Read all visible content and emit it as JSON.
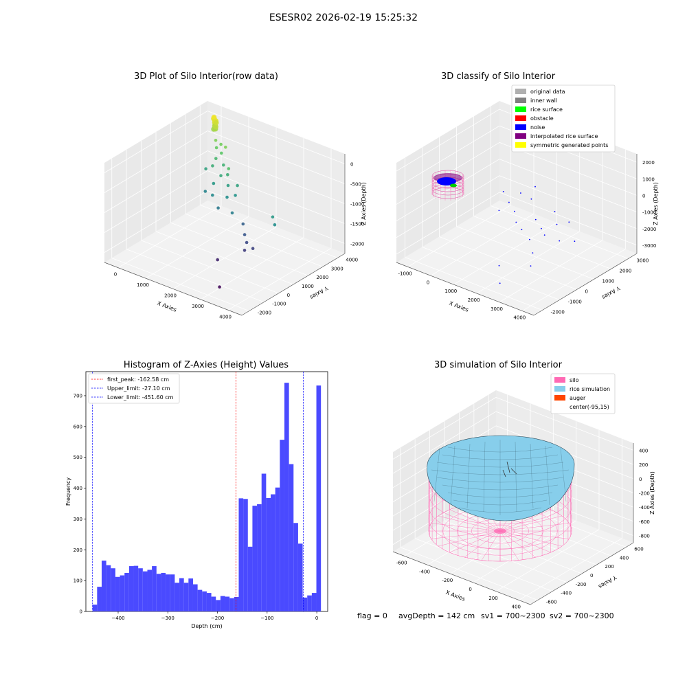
{
  "figure": {
    "suptitle": "ESESR02 2026-02-19 15:25:32",
    "status": {
      "flag": "flag = 0",
      "avg_depth": "avgDepth = 142 cm",
      "sv1": "sv1 = 700~2300",
      "sv2": "sv2 = 700~2300"
    }
  },
  "chart_data": [
    {
      "type": "scatter",
      "title": "3D Plot of Silo Interior(row data)",
      "xlabel": "X Axies",
      "ylabel": "Y Axies",
      "zlabel": "Z Axies (Depth)",
      "x_ticks": [
        "0",
        "1000",
        "2000",
        "3000",
        "4000"
      ],
      "y_ticks": [
        "-2000",
        "-1000",
        "0",
        "1000",
        "2000",
        "3000",
        "4000"
      ],
      "z_ticks": [
        "0",
        "-500",
        "-1000",
        "-1500",
        "-2000"
      ],
      "xlim": [
        -700,
        4600
      ],
      "ylim": [
        -2300,
        4300
      ],
      "zlim": [
        -2400,
        100
      ],
      "colormap": "viridis",
      "points": [
        {
          "x": -200,
          "y": 3900,
          "z": -120
        },
        {
          "x": -150,
          "y": 3850,
          "z": -200
        },
        {
          "x": -250,
          "y": 3950,
          "z": -150
        },
        {
          "x": -100,
          "y": 3800,
          "z": -250
        },
        {
          "x": -180,
          "y": 3900,
          "z": -300
        },
        {
          "x": -120,
          "y": 3850,
          "z": -350
        },
        {
          "x": -220,
          "y": 3920,
          "z": -100
        },
        {
          "x": -160,
          "y": 3880,
          "z": -180
        },
        {
          "x": -90,
          "y": 3820,
          "z": -280
        },
        {
          "x": -200,
          "y": 3870,
          "z": -380
        },
        {
          "x": -140,
          "y": 3930,
          "z": -220
        },
        {
          "x": -110,
          "y": 3860,
          "z": -150
        },
        {
          "x": 100,
          "y": 3500,
          "z": -500
        },
        {
          "x": 250,
          "y": 3300,
          "z": -600
        },
        {
          "x": 300,
          "y": 3500,
          "z": -550
        },
        {
          "x": 500,
          "y": 3200,
          "z": -650
        },
        {
          "x": 350,
          "y": 3100,
          "z": -800
        },
        {
          "x": 600,
          "y": 3300,
          "z": -500
        },
        {
          "x": 400,
          "y": 2800,
          "z": -900
        },
        {
          "x": 700,
          "y": 3000,
          "z": -850
        },
        {
          "x": 200,
          "y": 2700,
          "z": -1000
        },
        {
          "x": 900,
          "y": 2500,
          "z": -950
        },
        {
          "x": 1100,
          "y": 2600,
          "z": -900
        },
        {
          "x": 800,
          "y": 2200,
          "z": -1100
        },
        {
          "x": 1300,
          "y": 2300,
          "z": -1050
        },
        {
          "x": 600,
          "y": 2000,
          "z": -1300
        },
        {
          "x": 1000,
          "y": 1800,
          "z": -1250
        },
        {
          "x": 1500,
          "y": 1900,
          "z": -1200
        },
        {
          "x": 1700,
          "y": 2100,
          "z": -1150
        },
        {
          "x": 1400,
          "y": 1500,
          "z": -1400
        },
        {
          "x": 2000,
          "y": 1400,
          "z": -1350
        },
        {
          "x": 2300,
          "y": 1600,
          "z": -1600
        },
        {
          "x": 2600,
          "y": 1200,
          "z": -1700
        },
        {
          "x": 2800,
          "y": 1000,
          "z": -1800
        },
        {
          "x": 3100,
          "y": 900,
          "z": -1850
        },
        {
          "x": 2900,
          "y": 700,
          "z": -1900
        },
        {
          "x": 3500,
          "y": 1500,
          "z": -1100
        },
        {
          "x": 3700,
          "y": 1300,
          "z": -1200
        },
        {
          "x": 2400,
          "y": -200,
          "z": -2050
        },
        {
          "x": 3200,
          "y": -1400,
          "z": -2250
        },
        {
          "x": 1200,
          "y": 2500,
          "z": -700
        },
        {
          "x": 1600,
          "y": 2400,
          "z": -1000
        }
      ]
    },
    {
      "type": "scatter",
      "title": "3D classify of Silo Interior",
      "xlabel": "X Axies",
      "ylabel": "Y Axies",
      "zlabel": "Z Axies (Depth)",
      "x_ticks": [
        "-1000",
        "0",
        "1000",
        "2000",
        "3000",
        "4000"
      ],
      "y_ticks": [
        "-2000",
        "-1000",
        "0",
        "1000",
        "2000",
        "3000"
      ],
      "z_ticks": [
        "2000",
        "1000",
        "0",
        "-1000",
        "-2000",
        "-3000"
      ],
      "xlim": [
        -1300,
        4700
      ],
      "ylim": [
        -2300,
        3500
      ],
      "zlim": [
        -3600,
        2300
      ],
      "legend_position": "upper right",
      "legend": [
        {
          "label": "original data",
          "color": "#b0b0b0"
        },
        {
          "label": "inner wall",
          "color": "#808080"
        },
        {
          "label": "rice surface",
          "color": "#00ff00"
        },
        {
          "label": "obstacle",
          "color": "#ff0000"
        },
        {
          "label": "noise",
          "color": "#0000ff"
        },
        {
          "label": "interpolated rice surface",
          "color": "#800080"
        },
        {
          "label": "symmetric generated points",
          "color": "#ffff00"
        }
      ],
      "noise_points": [
        {
          "x": 500,
          "y": 1400,
          "z": -800
        },
        {
          "x": 900,
          "y": 1200,
          "z": -1100
        },
        {
          "x": 1300,
          "y": 1000,
          "z": -1300
        },
        {
          "x": 700,
          "y": 900,
          "z": -1500
        },
        {
          "x": 1600,
          "y": 700,
          "z": -1600
        },
        {
          "x": 2000,
          "y": 500,
          "z": -1700
        },
        {
          "x": 2300,
          "y": 900,
          "z": -1200
        },
        {
          "x": 2700,
          "y": 700,
          "z": -1400
        },
        {
          "x": 3000,
          "y": 500,
          "z": -1500
        },
        {
          "x": 3300,
          "y": 800,
          "z": -900
        },
        {
          "x": 3600,
          "y": 1100,
          "z": -800
        },
        {
          "x": 2500,
          "y": 300,
          "z": -1900
        },
        {
          "x": 3100,
          "y": -300,
          "z": -2000
        },
        {
          "x": 3800,
          "y": 300,
          "z": -1300
        },
        {
          "x": 1100,
          "y": 1600,
          "z": -700
        },
        {
          "x": 1800,
          "y": 1300,
          "z": -500
        },
        {
          "x": 2100,
          "y": -900,
          "z": -2900
        },
        {
          "x": 2600,
          "y": -1500,
          "z": -3300
        },
        {
          "x": 1500,
          "y": 1900,
          "z": -300
        },
        {
          "x": 2900,
          "y": 1200,
          "z": -600
        },
        {
          "x": 4000,
          "y": 900,
          "z": -1600
        },
        {
          "x": 3400,
          "y": -800,
          "z": -2300
        }
      ]
    },
    {
      "type": "bar",
      "title": "Histogram of Z-Axies (Height) Values",
      "xlabel": "Depth (cm)",
      "ylabel": "Frequency",
      "xlim": [
        -465,
        22
      ],
      "ylim": [
        0,
        778
      ],
      "x_ticks": [
        -400,
        -300,
        -200,
        -100,
        0
      ],
      "y_ticks": [
        0,
        100,
        200,
        300,
        400,
        500,
        600,
        700
      ],
      "bar_color": "#4a4aff",
      "bin_start": -451.6,
      "bin_width": 9.2,
      "values": [
        22,
        80,
        165,
        150,
        140,
        112,
        117,
        125,
        147,
        148,
        140,
        130,
        135,
        147,
        122,
        125,
        120,
        120,
        93,
        108,
        93,
        107,
        88,
        70,
        65,
        60,
        48,
        37,
        50,
        48,
        43,
        47,
        367,
        365,
        210,
        343,
        348,
        447,
        368,
        380,
        402,
        557,
        742,
        478,
        287,
        220,
        45,
        52,
        60,
        733
      ],
      "vlines": [
        {
          "label": "first_peak: -162.58 cm",
          "value": -162.58,
          "color": "#ff0000"
        },
        {
          "label": "Upper_limit: -27.10 cm",
          "value": -27.1,
          "color": "#0000ff"
        },
        {
          "label": "Lower_limit: -451.60 cm",
          "value": -451.6,
          "color": "#0000ff"
        }
      ],
      "legend_position": "upper left"
    },
    {
      "type": "surface",
      "title": "3D simulation of Silo Interior",
      "xlabel": "X Axies",
      "ylabel": "Y Axies",
      "zlabel": "Z Axies (Depth)",
      "x_ticks": [
        "-600",
        "-400",
        "-200",
        "0",
        "200",
        "400"
      ],
      "y_ticks": [
        "-600",
        "-400",
        "-200",
        "0",
        "200",
        "400",
        "600"
      ],
      "z_ticks": [
        "400",
        "200",
        "0",
        "-200",
        "-400",
        "-600",
        "-800"
      ],
      "legend_position": "upper right",
      "legend": [
        {
          "label": "silo",
          "color": "#ff69b4"
        },
        {
          "label": "rice simulation",
          "color": "#87ceeb"
        },
        {
          "label": "auger",
          "color": "#ff4500"
        },
        {
          "label": "center(-95,15)",
          "color": ""
        }
      ]
    }
  ]
}
